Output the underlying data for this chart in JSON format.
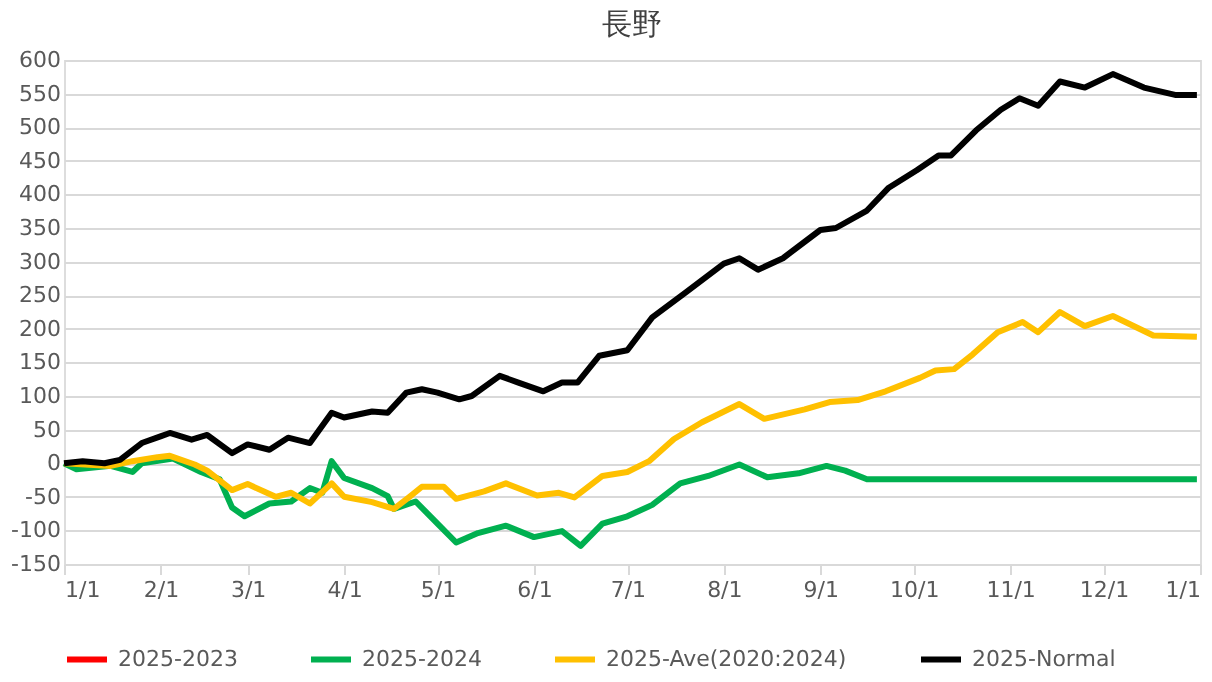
{
  "chart_data": {
    "type": "line",
    "title": "長野",
    "xlim": [
      "2025-01-01",
      "2026-01-01"
    ],
    "xticks": [
      {
        "value": "2025-01-01",
        "label": "1/1"
      },
      {
        "value": "2025-02-01",
        "label": "2/1"
      },
      {
        "value": "2025-03-01",
        "label": "3/1"
      },
      {
        "value": "2025-04-01",
        "label": "4/1"
      },
      {
        "value": "2025-05-01",
        "label": "5/1"
      },
      {
        "value": "2025-06-01",
        "label": "6/1"
      },
      {
        "value": "2025-07-01",
        "label": "7/1"
      },
      {
        "value": "2025-08-01",
        "label": "8/1"
      },
      {
        "value": "2025-09-01",
        "label": "9/1"
      },
      {
        "value": "2025-10-01",
        "label": "10/1"
      },
      {
        "value": "2025-11-01",
        "label": "11/1"
      },
      {
        "value": "2025-12-01",
        "label": "12/1"
      },
      {
        "value": "2026-01-01",
        "label": "1/1"
      }
    ],
    "ylim": [
      -150,
      600
    ],
    "yticks": [
      -150,
      -100,
      -50,
      0,
      50,
      100,
      150,
      200,
      250,
      300,
      350,
      400,
      450,
      500,
      550,
      600
    ],
    "grid": "y",
    "legend": "bottom",
    "marker": "none",
    "line_style": "solid",
    "series": [
      {
        "name": "2025-2023",
        "color": "#ff0000"
      },
      {
        "name": "2025-2024",
        "color": "#00b050",
        "x": [
          "2025-01-01",
          "2025-01-05",
          "2025-01-16",
          "2025-01-23",
          "2025-01-26",
          "2025-02-05",
          "2025-02-14",
          "2025-02-20",
          "2025-02-24",
          "2025-02-28",
          "2025-03-08",
          "2025-03-15",
          "2025-03-21",
          "2025-03-25",
          "2025-03-28",
          "2025-04-01",
          "2025-04-10",
          "2025-04-15",
          "2025-04-17",
          "2025-04-24",
          "2025-05-01",
          "2025-05-07",
          "2025-05-14",
          "2025-05-23",
          "2025-06-01",
          "2025-06-10",
          "2025-06-16",
          "2025-06-23",
          "2025-07-01",
          "2025-07-09",
          "2025-07-18",
          "2025-07-27",
          "2025-08-06",
          "2025-08-15",
          "2025-08-25",
          "2025-09-03",
          "2025-09-09",
          "2025-09-16",
          "2025-12-31"
        ],
        "values": [
          0,
          -9,
          -4,
          -13,
          0,
          7,
          -13,
          -24,
          -66,
          -79,
          -60,
          -57,
          -37,
          -44,
          3,
          -22,
          -37,
          -49,
          -68,
          -57,
          -90,
          -118,
          -104,
          -93,
          -110,
          -101,
          -123,
          -90,
          -79,
          -62,
          -30,
          -19,
          -2,
          -21,
          -15,
          -4,
          -11,
          -24,
          -24
        ]
      },
      {
        "name": "2025-Ave(2020:2024)",
        "color": "#ffc000",
        "x": [
          "2025-01-01",
          "2025-01-16",
          "2025-01-23",
          "2025-01-31",
          "2025-02-04",
          "2025-02-12",
          "2025-02-16",
          "2025-02-24",
          "2025-03-01",
          "2025-03-10",
          "2025-03-15",
          "2025-03-21",
          "2025-03-28",
          "2025-04-01",
          "2025-04-10",
          "2025-04-17",
          "2025-04-22",
          "2025-04-26",
          "2025-05-03",
          "2025-05-07",
          "2025-05-16",
          "2025-05-23",
          "2025-06-02",
          "2025-06-09",
          "2025-06-14",
          "2025-06-23",
          "2025-07-01",
          "2025-07-08",
          "2025-07-16",
          "2025-07-25",
          "2025-08-06",
          "2025-08-14",
          "2025-08-27",
          "2025-09-04",
          "2025-09-13",
          "2025-09-22",
          "2025-10-03",
          "2025-10-08",
          "2025-10-14",
          "2025-10-20",
          "2025-10-28",
          "2025-11-05",
          "2025-11-10",
          "2025-11-17",
          "2025-11-25",
          "2025-12-04",
          "2025-12-17",
          "2025-12-31"
        ],
        "values": [
          0,
          -4,
          3,
          9,
          11,
          -2,
          -11,
          -40,
          -31,
          -50,
          -44,
          -60,
          -30,
          -50,
          -58,
          -68,
          -50,
          -35,
          -35,
          -53,
          -42,
          -30,
          -48,
          -44,
          -51,
          -19,
          -13,
          3,
          36,
          61,
          88,
          66,
          80,
          91,
          94,
          107,
          127,
          138,
          140,
          162,
          195,
          210,
          195,
          225,
          204,
          219,
          190,
          188
        ]
      },
      {
        "name": "2025-Normal",
        "color": "#000000",
        "x": [
          "2025-01-01",
          "2025-01-07",
          "2025-01-14",
          "2025-01-19",
          "2025-01-26",
          "2025-02-01",
          "2025-02-04",
          "2025-02-11",
          "2025-02-16",
          "2025-02-24",
          "2025-03-01",
          "2025-03-08",
          "2025-03-14",
          "2025-03-21",
          "2025-03-28",
          "2025-04-01",
          "2025-04-10",
          "2025-04-15",
          "2025-04-21",
          "2025-04-26",
          "2025-05-01",
          "2025-05-08",
          "2025-05-12",
          "2025-05-21",
          "2025-05-27",
          "2025-06-04",
          "2025-06-10",
          "2025-06-15",
          "2025-06-22",
          "2025-07-01",
          "2025-07-09",
          "2025-07-20",
          "2025-08-01",
          "2025-08-06",
          "2025-08-12",
          "2025-08-20",
          "2025-09-01",
          "2025-09-06",
          "2025-09-16",
          "2025-09-23",
          "2025-10-02",
          "2025-10-09",
          "2025-10-13",
          "2025-10-21",
          "2025-10-29",
          "2025-11-04",
          "2025-11-10",
          "2025-11-17",
          "2025-11-25",
          "2025-12-04",
          "2025-12-14",
          "2025-12-24",
          "2025-12-31"
        ],
        "values": [
          0,
          3,
          0,
          5,
          30,
          40,
          45,
          35,
          42,
          15,
          28,
          20,
          38,
          30,
          75,
          68,
          77,
          75,
          105,
          110,
          105,
          95,
          100,
          130,
          120,
          107,
          120,
          120,
          160,
          168,
          217,
          255,
          297,
          305,
          288,
          305,
          347,
          350,
          376,
          410,
          436,
          458,
          458,
          495,
          526,
          543,
          532,
          568,
          559,
          579,
          559,
          548,
          548
        ]
      }
    ]
  }
}
